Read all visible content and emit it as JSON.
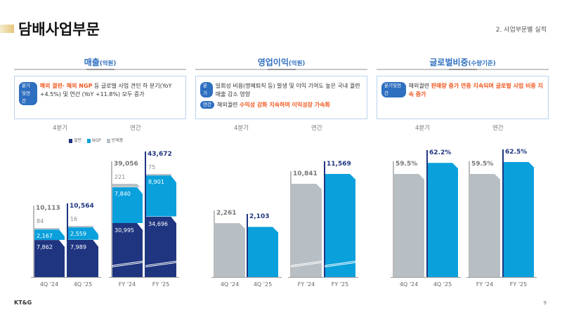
{
  "header": {
    "title": "담배사업부문",
    "section": "2. 사업부문별 실적"
  },
  "colors": {
    "cigarette": "#1f3580",
    "ngp": "#0aa0dc",
    "semi": "#b8bfc4",
    "prior": "#b8bfc4",
    "current": "#0aa0dc",
    "highlight": "#f05a22",
    "accent": "#2f6fc0"
  },
  "panels": [
    {
      "title": "매출",
      "unit": "(억원)",
      "notes": [
        {
          "badge": "분기및연간",
          "text_hl": "해외 궐련· 해외 NGP",
          "text": " 등 글로벌 사업 견인 하 분기(YoY +4.5%) 및 연간 (YoY +11.8%) 모두 증가"
        }
      ],
      "groups": [
        "4분기",
        "연간"
      ],
      "legend": [
        "궐련",
        "NGP",
        "반제품"
      ]
    },
    {
      "title": "영업이익",
      "unit": "(억원)",
      "notes": [
        {
          "badge": "분기",
          "text": "일회성 비용(명예퇴직 등) 발생 및 이익 기여도 높은 국내 궐련 매출 감소 영향"
        },
        {
          "badge": "연간",
          "text_pre": "해외궐련 ",
          "text_hl": "수익성 강화 지속하며 이익성장 가속화"
        }
      ],
      "groups": [
        "4분기",
        "연간"
      ]
    },
    {
      "title": "글로벌비중",
      "unit": "(수량기준)",
      "notes": [
        {
          "badge": "분기및연간",
          "text_pre": "해외궐련 ",
          "text_hl": "판매량 증가 연중 지속되며 글로벌 사업 비중 지속 증가"
        }
      ],
      "groups": [
        "4분기",
        "연간"
      ]
    }
  ],
  "chart_data": [
    {
      "type": "bar",
      "stacked": true,
      "categories": [
        "4Q '24",
        "4Q '25",
        "FY '24",
        "FY '25"
      ],
      "series": [
        {
          "name": "궐련",
          "values": [
            7862,
            7989,
            30995,
            34696
          ]
        },
        {
          "name": "NGP",
          "values": [
            2167,
            2559,
            7840,
            8901
          ]
        },
        {
          "name": "반제품",
          "values": [
            84,
            16,
            221,
            75
          ]
        }
      ],
      "totals": [
        "10,113",
        "10,564",
        "39,056",
        "43,672"
      ],
      "axis_break": "annual"
    },
    {
      "type": "bar",
      "categories": [
        "4Q '24",
        "4Q '25",
        "FY '24",
        "FY '25"
      ],
      "values": [
        2261,
        2103,
        10841,
        11569
      ],
      "labels": [
        "2,261",
        "2,103",
        "10,841",
        "11,569"
      ],
      "axis_break": "annual"
    },
    {
      "type": "bar",
      "categories": [
        "4Q '24",
        "4Q '25",
        "FY '24",
        "FY '25"
      ],
      "values": [
        59.5,
        62.2,
        59.5,
        62.5
      ],
      "labels": [
        "59.5%",
        "62.2%",
        "59.5%",
        "62.5%"
      ]
    }
  ],
  "footer": {
    "logo": "KT&G",
    "page": "9"
  }
}
